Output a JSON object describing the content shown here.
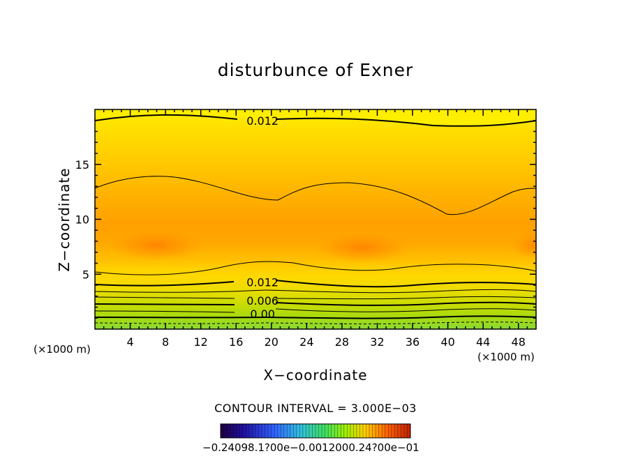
{
  "chart_data": {
    "type": "contour",
    "title": "disturbunce of Exner",
    "xlabel": "X−coordinate",
    "ylabel": "Z−coordinate",
    "x_unit_left": "(×1000 m)",
    "x_unit_right": "(×1000 m)",
    "xlim": [
      0,
      50
    ],
    "ylim": [
      0,
      20
    ],
    "xticks": [
      4,
      8,
      12,
      16,
      20,
      24,
      28,
      32,
      36,
      40,
      44,
      48
    ],
    "yticks": [
      5,
      10,
      15
    ],
    "contour_interval": "CONTOUR INTERVAL = 3.000E−03",
    "contour_labels": [
      {
        "text": "0.012",
        "x": 19,
        "z": 19
      },
      {
        "text": "0.012",
        "x": 19,
        "z": 4.3
      },
      {
        "text": "0.006",
        "x": 19,
        "z": 2.6
      },
      {
        "text": "0.00",
        "x": 19,
        "z": 1.4
      }
    ],
    "colorbar_text": "−0.24098.1?00e−0.0012000.24?00e−01"
  }
}
